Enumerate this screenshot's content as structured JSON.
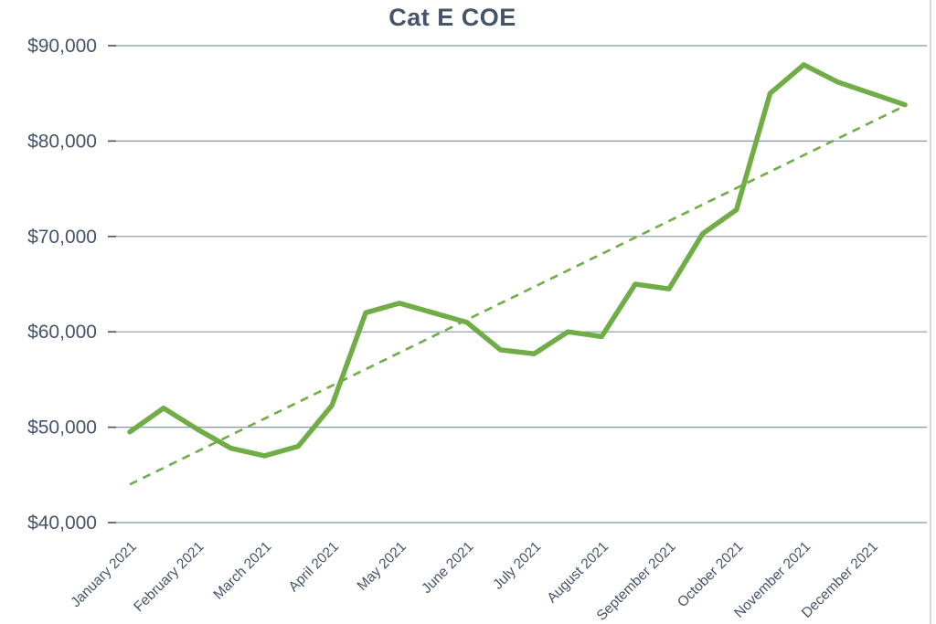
{
  "chart_data": {
    "type": "line",
    "title": "Cat E COE",
    "x_tick_labels": [
      "January 2021",
      "February 2021",
      "March 2021",
      "April 2021",
      "May 2021",
      "June 2021",
      "July 2021",
      "August 2021",
      "September 2021",
      "October 2021",
      "November 2021",
      "December 2021"
    ],
    "y_tick_labels": [
      "$90,000",
      "$80,000",
      "$70,000",
      "$60,000",
      "$50,000",
      "$40,000"
    ],
    "ylim": [
      40000,
      90000
    ],
    "y_gridline_step": 10000,
    "grid": true,
    "legend": "none",
    "points_per_month": 2,
    "series": [
      {
        "name": "Cat E COE premium",
        "style": "solid",
        "color": "#70AD47",
        "values": [
          49500,
          52000,
          49800,
          47800,
          47000,
          48000,
          52300,
          62000,
          63000,
          62000,
          61000,
          58100,
          57700,
          60000,
          59500,
          65000,
          64500,
          70300,
          72800,
          85000,
          88000,
          86200,
          85000,
          83800
        ]
      },
      {
        "name": "linear trendline",
        "style": "dashed",
        "color": "#70AD47",
        "endpoint_values": [
          44000,
          83700
        ]
      }
    ]
  },
  "colors": {
    "title": "#44546A",
    "axis_label": "#44546A",
    "gridline": "#8496B4",
    "tick": "#44546A",
    "frame_line": "#C8CCD2",
    "background": "#FFFFFF"
  }
}
